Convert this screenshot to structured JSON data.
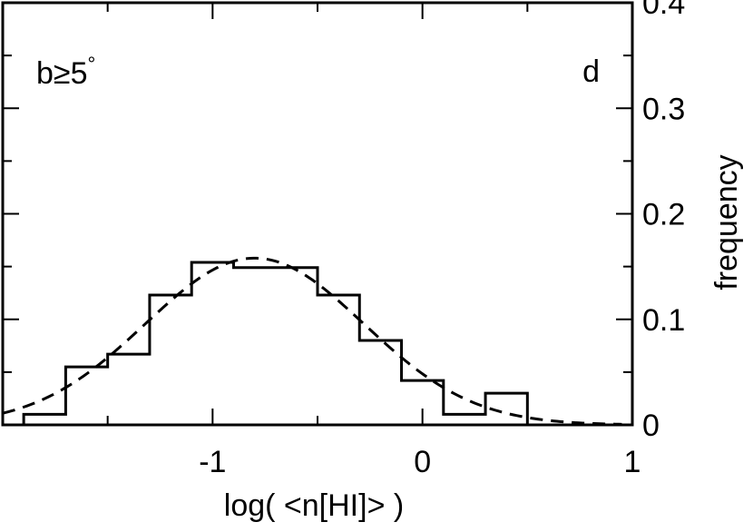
{
  "chart_data": {
    "type": "histogram",
    "xlabel": "log( <n[HI]> )",
    "ylabel": "frequency",
    "xlim": [
      -2,
      1
    ],
    "ylim": [
      0,
      0.4
    ],
    "x_ticks": [
      -1,
      0,
      1
    ],
    "x_tick_labels": [
      "-1",
      "0",
      "1"
    ],
    "y_ticks": [
      0,
      0.1,
      0.2,
      0.3,
      0.4
    ],
    "y_tick_labels": [
      "0",
      "0.1",
      "0.2",
      "0.3",
      "0.4"
    ],
    "y_minor_step": 0.05,
    "x_minor_step": 0.5,
    "y_axis_side": "right",
    "grid": false,
    "annotations": {
      "top_left": "b≥5",
      "top_left_degree": "°",
      "top_right": "d"
    },
    "histogram": {
      "bin_edges": [
        -1.9,
        -1.7,
        -1.5,
        -1.3,
        -1.1,
        -0.9,
        -0.7,
        -0.5,
        -0.3,
        -0.1,
        0.1,
        0.3,
        0.5
      ],
      "values": [
        0.01,
        0.055,
        0.067,
        0.123,
        0.154,
        0.149,
        0.149,
        0.123,
        0.08,
        0.042,
        0.01,
        0.03
      ]
    },
    "gaussian_fit": {
      "line_style": "dashed",
      "amplitude": 0.158,
      "mean": -0.8,
      "sigma": 0.52,
      "x_range": [
        -2.0,
        0.95
      ]
    }
  }
}
